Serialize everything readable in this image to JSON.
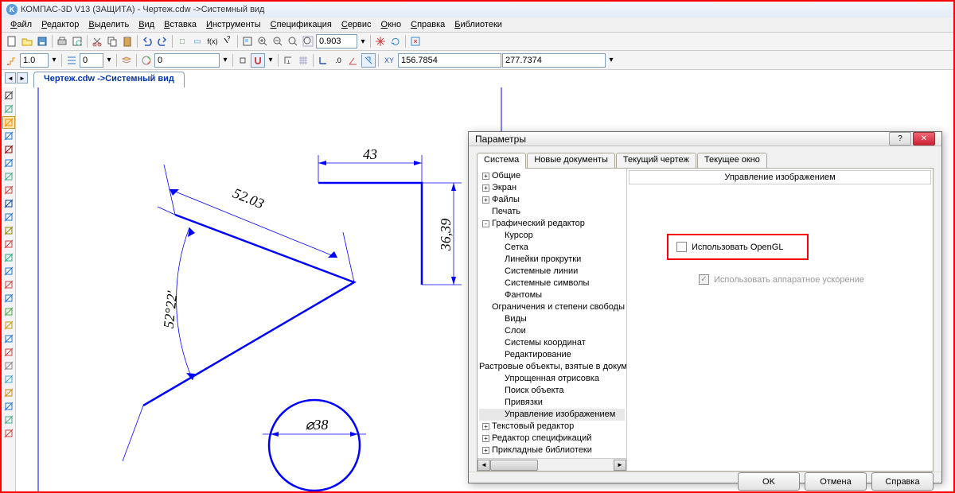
{
  "title": "КОМПАС-3D V13 (ЗАЩИТА) - Чертеж.cdw ->Системный вид",
  "menu": [
    "Файл",
    "Редактор",
    "Выделить",
    "Вид",
    "Вставка",
    "Инструменты",
    "Спецификация",
    "Сервис",
    "Окно",
    "Справка",
    "Библиотеки"
  ],
  "toolbar": {
    "scale_field": "0.903",
    "step_field": "1.0",
    "style_field": "0",
    "angle_field": "0",
    "coord_x": "156.7854",
    "coord_y": "277.7374",
    "xy_label": "XY"
  },
  "doc_tab": "Чертеж.cdw  ->Системный вид",
  "drawing": {
    "frame_color": "#0000ff",
    "line_color": "#0000ff",
    "text_color": "#000000",
    "dim1": "52.03",
    "dim2": "43",
    "dim3": "36,39",
    "angle_dim": "52°22'",
    "dia": "⌀38"
  },
  "dialog": {
    "title": "Параметры",
    "tabs": [
      "Система",
      "Новые документы",
      "Текущий чертеж",
      "Текущее окно"
    ],
    "active_tab": 0,
    "tree": [
      {
        "lvl": 0,
        "toggle": "+",
        "label": "Общие"
      },
      {
        "lvl": 0,
        "toggle": "+",
        "label": "Экран"
      },
      {
        "lvl": 0,
        "toggle": "+",
        "label": "Файлы"
      },
      {
        "lvl": 0,
        "toggle": "",
        "label": "Печать"
      },
      {
        "lvl": 0,
        "toggle": "-",
        "label": "Графический редактор"
      },
      {
        "lvl": 1,
        "toggle": "",
        "label": "Курсор"
      },
      {
        "lvl": 1,
        "toggle": "",
        "label": "Сетка"
      },
      {
        "lvl": 1,
        "toggle": "",
        "label": "Линейки прокрутки"
      },
      {
        "lvl": 1,
        "toggle": "",
        "label": "Системные линии"
      },
      {
        "lvl": 1,
        "toggle": "",
        "label": "Системные символы"
      },
      {
        "lvl": 1,
        "toggle": "",
        "label": "Фантомы"
      },
      {
        "lvl": 1,
        "toggle": "",
        "label": "Ограничения и степени свободы"
      },
      {
        "lvl": 1,
        "toggle": "",
        "label": "Виды"
      },
      {
        "lvl": 1,
        "toggle": "",
        "label": "Слои"
      },
      {
        "lvl": 1,
        "toggle": "",
        "label": "Системы координат"
      },
      {
        "lvl": 1,
        "toggle": "",
        "label": "Редактирование"
      },
      {
        "lvl": 1,
        "toggle": "",
        "label": "Растровые объекты, взятые в документ"
      },
      {
        "lvl": 1,
        "toggle": "",
        "label": "Упрощенная отрисовка"
      },
      {
        "lvl": 1,
        "toggle": "",
        "label": "Поиск объекта"
      },
      {
        "lvl": 1,
        "toggle": "",
        "label": "Привязки"
      },
      {
        "lvl": 1,
        "toggle": "",
        "label": "Управление изображением",
        "sel": true
      },
      {
        "lvl": 0,
        "toggle": "+",
        "label": "Текстовый редактор"
      },
      {
        "lvl": 0,
        "toggle": "+",
        "label": "Редактор спецификаций"
      },
      {
        "lvl": 0,
        "toggle": "+",
        "label": "Прикладные библиотеки"
      }
    ],
    "group_title": "Управление изображением",
    "opt1": "Использовать OpenGL",
    "opt2": "Использовать аппаратное ускорение",
    "buttons": {
      "ok": "OK",
      "cancel": "Отмена",
      "help": "Справка"
    }
  }
}
